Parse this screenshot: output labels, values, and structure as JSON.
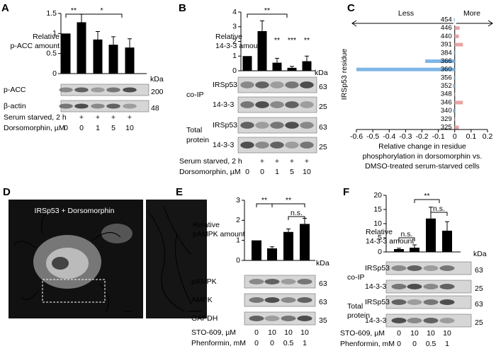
{
  "chart_data": [
    {
      "type": "bar",
      "panel": "A",
      "title": [
        "Relative",
        "p-ACC amount"
      ],
      "values": [
        1.0,
        1.28,
        0.85,
        0.72,
        0.65
      ],
      "errors": [
        null,
        0.2,
        0.2,
        0.2,
        0.22
      ],
      "color": "#000000",
      "ylim": [
        0,
        1.5
      ],
      "yticks": [
        0,
        0.5,
        1,
        1.5
      ],
      "annotations": [
        "**",
        "*"
      ],
      "kda_unit": "kDa",
      "blot_groups": [
        {
          "rows": [
            {
              "label": "p-ACC",
              "kda": 200
            },
            {
              "label": "β-actin",
              "kda": 48
            }
          ]
        }
      ],
      "conditions": [
        {
          "label": "Serum starved, 2 h",
          "values": [
            null,
            "+",
            "+",
            "+",
            "+"
          ]
        },
        {
          "label": "Dorsomorphin, µM",
          "values": [
            0,
            0,
            1,
            5,
            10
          ]
        }
      ]
    },
    {
      "type": "bar",
      "panel": "B",
      "title": [
        "Relative",
        "14-3-3 amount"
      ],
      "values": [
        1.0,
        2.7,
        0.55,
        0.2,
        0.65
      ],
      "errors": [
        null,
        0.7,
        0.3,
        0.1,
        0.35
      ],
      "color": "#000000",
      "ylim": [
        0,
        4
      ],
      "yticks": [
        0,
        1,
        2,
        3,
        4
      ],
      "annotations": [
        "**",
        "**",
        "***",
        "**"
      ],
      "kda_unit": "kDa",
      "blot_groups": [
        {
          "name": [
            "co-IP"
          ],
          "rows": [
            {
              "label": "IRSp53",
              "kda": 63
            },
            {
              "label": "14-3-3",
              "kda": 25
            }
          ]
        },
        {
          "name": [
            "Total",
            "protein"
          ],
          "rows": [
            {
              "label": "IRSp53",
              "kda": 63
            },
            {
              "label": "14-3-3",
              "kda": 25
            }
          ]
        }
      ],
      "conditions": [
        {
          "label": "Serum starved, 2 h",
          "values": [
            null,
            "+",
            "+",
            "+",
            "+"
          ]
        },
        {
          "label": "Dorsomorphin, µM",
          "values": [
            0,
            0,
            1,
            5,
            10
          ]
        }
      ]
    },
    {
      "type": "hbar",
      "panel": "C",
      "categories": [
        "454",
        "446",
        "440",
        "391",
        "384",
        "366",
        "360",
        "356",
        "352",
        "348",
        "346",
        "340",
        "329",
        "325"
      ],
      "values": [
        -0.005,
        0.03,
        0.025,
        0.05,
        -0.005,
        -0.18,
        -0.6,
        -0.005,
        -0.01,
        0.003,
        0.05,
        -0.01,
        0.003,
        0.025
      ],
      "positive_color": "#e8a3a3",
      "negative_color": "#7fb6e6",
      "xlim": [
        -0.6,
        0.2
      ],
      "xticks": [
        -0.6,
        -0.5,
        -0.4,
        -0.3,
        -0.2,
        -0.1,
        0,
        0.1,
        0.2
      ],
      "ylabel": "IRSp53 residue",
      "xlabel": [
        "Relative change in residue",
        "phosphorylation in dorsomorphin vs.",
        "DMSO-treated serum-starved cells"
      ],
      "arrow_labels": [
        "Less",
        "More"
      ]
    },
    {
      "type": "bar",
      "panel": "E",
      "title": [
        "Relative",
        "pAMPK amount"
      ],
      "values": [
        1.0,
        0.6,
        1.42,
        1.82
      ],
      "errors": [
        null,
        0.08,
        0.15,
        0.28
      ],
      "color": "#000000",
      "ylim": [
        0,
        3
      ],
      "yticks": [
        0,
        1,
        2,
        3
      ],
      "annotations": [
        "**",
        "**",
        "n.s."
      ],
      "kda_unit": "kDa",
      "blot_groups": [
        {
          "rows": [
            {
              "label": "pAMPK",
              "kda": 63
            },
            {
              "label": "AMPK",
              "kda": 63
            },
            {
              "label": "GAPDH",
              "kda": 35
            }
          ]
        }
      ],
      "conditions": [
        {
          "label": "STO-609, µM",
          "values": [
            0,
            10,
            10,
            10
          ]
        },
        {
          "label": "Phenformin, mM",
          "values": [
            0,
            0,
            0.5,
            1
          ]
        }
      ]
    },
    {
      "type": "bar",
      "panel": "F",
      "title": [
        "Relative",
        "14-3-3 amount"
      ],
      "values": [
        1.0,
        1.5,
        11.8,
        7.5
      ],
      "errors": [
        0.3,
        1.0,
        4.0,
        3.2
      ],
      "color": "#000000",
      "ylim": [
        0,
        20
      ],
      "yticks": [
        0,
        5,
        10,
        15,
        20
      ],
      "annotations": [
        "n.s.",
        "**",
        "n.s."
      ],
      "kda_unit": "kDa",
      "blot_groups": [
        {
          "name": [
            "co-IP"
          ],
          "rows": [
            {
              "label": "IRSp53",
              "kda": 63
            },
            {
              "label": "14-3-3",
              "kda": 25
            }
          ]
        },
        {
          "name": [
            "Total",
            "protein"
          ],
          "rows": [
            {
              "label": "IRSp53",
              "kda": 63
            },
            {
              "label": "14-3-3",
              "kda": 25
            }
          ]
        }
      ],
      "conditions": [
        {
          "label": "STO-609, µM",
          "values": [
            0,
            10,
            10,
            10
          ]
        },
        {
          "label": "Phenformin, mM",
          "values": [
            0,
            0,
            0.5,
            1
          ]
        }
      ]
    }
  ],
  "image_panel": {
    "panel": "D",
    "title": "IRSp53 + Dorsomorphin"
  }
}
